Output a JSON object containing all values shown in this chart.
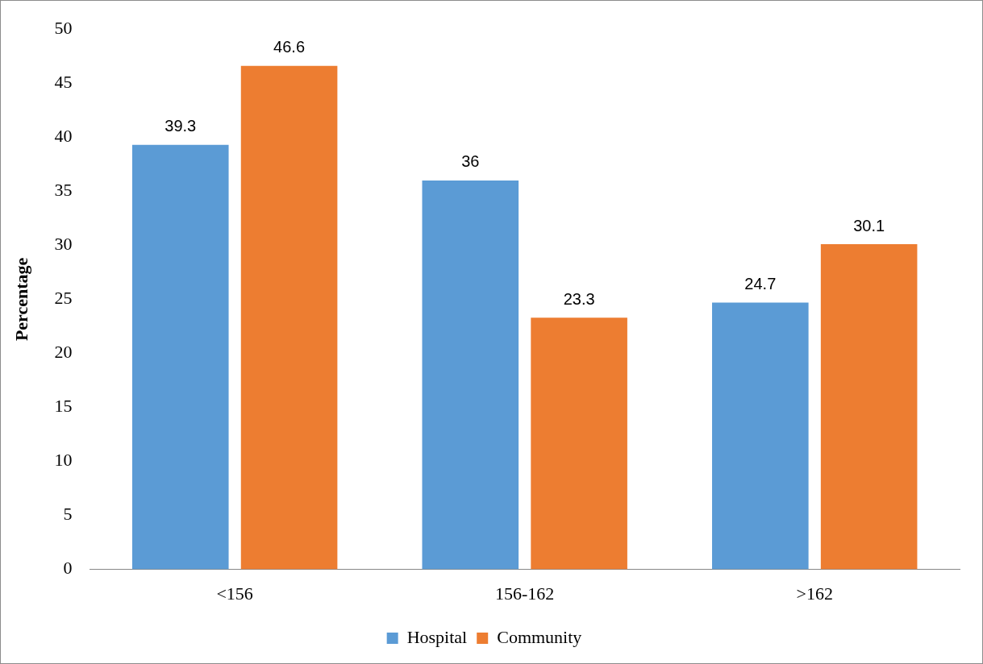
{
  "chart_data": {
    "type": "bar",
    "ylabel": "Percentage",
    "categories": [
      "<156",
      "156-162",
      ">162"
    ],
    "series": [
      {
        "name": "Hospital",
        "color": "#5b9bd5",
        "values": [
          39.3,
          36,
          24.7
        ]
      },
      {
        "name": "Community",
        "color": "#ed7d31",
        "values": [
          46.6,
          23.3,
          30.1
        ]
      }
    ],
    "ylim": [
      0,
      50
    ],
    "yticks": [
      0,
      5,
      10,
      15,
      20,
      25,
      30,
      35,
      40,
      45,
      50
    ],
    "grid": false,
    "legend": "bottom",
    "data_labels": true
  }
}
